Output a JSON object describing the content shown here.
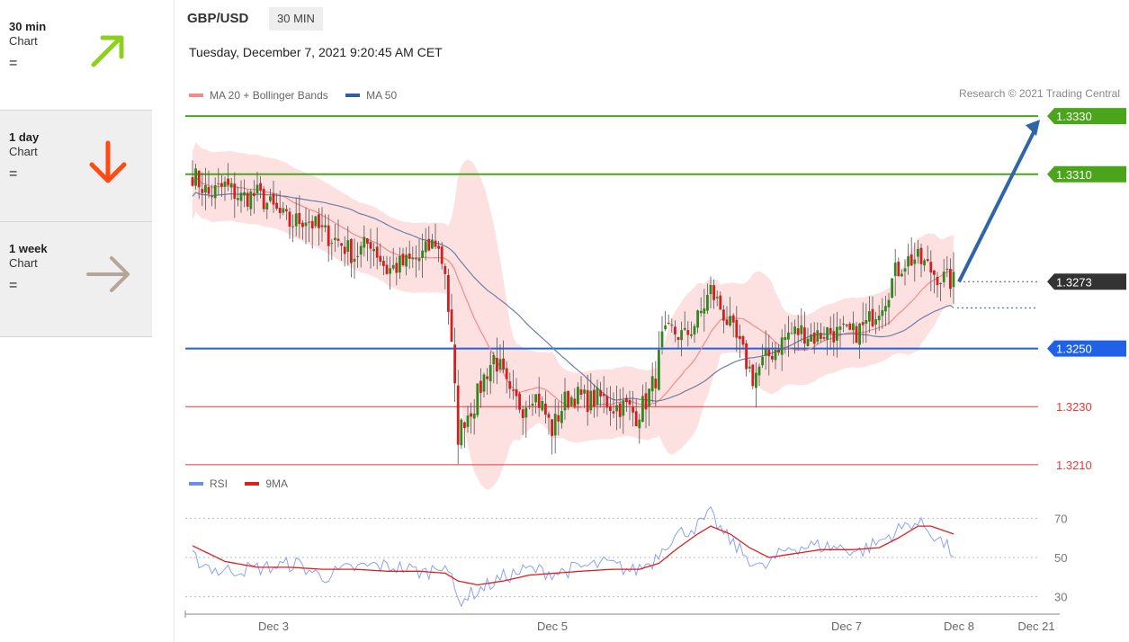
{
  "sidebar": {
    "timeframes": [
      {
        "name": "30 min",
        "sub": "Chart",
        "signal": "=",
        "icon": "arrow-up-right-icon",
        "color": "#8ed11c"
      },
      {
        "name": "1 day",
        "sub": "Chart",
        "signal": "=",
        "icon": "arrow-down-icon",
        "color": "#ff4a14"
      },
      {
        "name": "1 week",
        "sub": "Chart",
        "signal": "=",
        "icon": "arrow-right-icon",
        "color": "#b4a698"
      }
    ]
  },
  "header": {
    "pair": "GBP/USD",
    "timeframe_badge": "30 MIN",
    "datetime": "Tuesday, December 7, 2021 9:20:45 AM CET",
    "legend": [
      {
        "label": "MA 20 + Bollinger Bands",
        "color": "#f28c8c"
      },
      {
        "label": "MA 50",
        "color": "#2e5ea8"
      }
    ],
    "copyright": "Research © 2021 Trading Central"
  },
  "rsi_legend": [
    {
      "label": "RSI",
      "color": "#6b8ee8"
    },
    {
      "label": "9MA",
      "color": "#e01e1e"
    }
  ],
  "chart_data": [
    {
      "type": "candlestick",
      "x_ticks": [
        "Dec 3",
        "Dec 5",
        "Dec 7",
        "Dec 8",
        "Dec 21"
      ],
      "y_ticks": [
        "1.3210",
        "1.3230",
        "1.3250",
        "1.3273",
        "1.3310",
        "1.3330"
      ],
      "ylim": [
        1.3205,
        1.3335
      ],
      "current_price": 1.3273,
      "levels": [
        {
          "label": "1.3330",
          "value": 1.333,
          "kind": "resistance",
          "color": "#4aa51a"
        },
        {
          "label": "1.3310",
          "value": 1.331,
          "kind": "resistance",
          "color": "#4aa51a"
        },
        {
          "label": "1.3273",
          "value": 1.3273,
          "kind": "current",
          "color": "#333333"
        },
        {
          "label": "1.3250",
          "value": 1.325,
          "kind": "pivot",
          "color": "#1f62e8"
        },
        {
          "label": "1.3230",
          "value": 1.323,
          "kind": "support",
          "color": "#e83a3a"
        },
        {
          "label": "1.3210",
          "value": 1.321,
          "kind": "support",
          "color": "#e83a3a"
        }
      ],
      "target_arrow": {
        "from": 1.3273,
        "to": 1.333,
        "color": "#2f64a8"
      },
      "ma50_end": 1.3264,
      "close_anchors": [
        [
          0,
          1.331
        ],
        [
          5,
          1.3303
        ],
        [
          10,
          1.3306
        ],
        [
          15,
          1.3302
        ],
        [
          20,
          1.3303
        ],
        [
          25,
          1.3298
        ],
        [
          30,
          1.3293
        ],
        [
          35,
          1.3295
        ],
        [
          40,
          1.329
        ],
        [
          45,
          1.3287
        ],
        [
          50,
          1.3282
        ],
        [
          55,
          1.3287
        ],
        [
          60,
          1.3277
        ],
        [
          65,
          1.3279
        ],
        [
          70,
          1.3281
        ],
        [
          75,
          1.3287
        ],
        [
          78,
          1.3277
        ],
        [
          80,
          1.325
        ],
        [
          82,
          1.322
        ],
        [
          84,
          1.3226
        ],
        [
          87,
          1.3231
        ],
        [
          90,
          1.324
        ],
        [
          93,
          1.3247
        ],
        [
          95,
          1.3243
        ],
        [
          98,
          1.3233
        ],
        [
          102,
          1.323
        ],
        [
          105,
          1.3235
        ],
        [
          108,
          1.323
        ],
        [
          111,
          1.3222
        ],
        [
          115,
          1.3232
        ],
        [
          118,
          1.3234
        ],
        [
          122,
          1.3232
        ],
        [
          126,
          1.3233
        ],
        [
          130,
          1.323
        ],
        [
          134,
          1.323
        ],
        [
          137,
          1.3227
        ],
        [
          140,
          1.3232
        ],
        [
          143,
          1.324
        ],
        [
          145,
          1.3253
        ],
        [
          148,
          1.3256
        ],
        [
          152,
          1.3254
        ],
        [
          156,
          1.326
        ],
        [
          160,
          1.327
        ],
        [
          164,
          1.3262
        ],
        [
          167,
          1.3255
        ],
        [
          170,
          1.3248
        ],
        [
          173,
          1.324
        ],
        [
          176,
          1.3245
        ],
        [
          180,
          1.325
        ],
        [
          184,
          1.3255
        ],
        [
          188,
          1.3256
        ],
        [
          192,
          1.3254
        ],
        [
          196,
          1.3256
        ],
        [
          200,
          1.3255
        ],
        [
          204,
          1.3255
        ],
        [
          208,
          1.3258
        ],
        [
          211,
          1.3263
        ],
        [
          214,
          1.3268
        ],
        [
          217,
          1.3276
        ],
        [
          220,
          1.328
        ],
        [
          223,
          1.3281
        ],
        [
          226,
          1.3279
        ],
        [
          229,
          1.3276
        ],
        [
          232,
          1.3274
        ],
        [
          235,
          1.3273
        ]
      ],
      "rsi": {
        "y_ticks": [
          "30",
          "50",
          "70"
        ],
        "ylim": [
          22,
          78
        ],
        "anchors": [
          [
            0,
            50
          ],
          [
            8,
            43
          ],
          [
            16,
            44
          ],
          [
            24,
            45
          ],
          [
            32,
            47
          ],
          [
            40,
            40
          ],
          [
            48,
            44
          ],
          [
            56,
            46
          ],
          [
            64,
            45
          ],
          [
            72,
            42
          ],
          [
            78,
            48
          ],
          [
            82,
            28
          ],
          [
            88,
            33
          ],
          [
            96,
            40
          ],
          [
            104,
            44
          ],
          [
            112,
            42
          ],
          [
            120,
            45
          ],
          [
            128,
            47
          ],
          [
            136,
            43
          ],
          [
            142,
            48
          ],
          [
            146,
            57
          ],
          [
            150,
            62
          ],
          [
            156,
            66
          ],
          [
            160,
            72
          ],
          [
            164,
            62
          ],
          [
            170,
            52
          ],
          [
            176,
            44
          ],
          [
            184,
            55
          ],
          [
            192,
            56
          ],
          [
            200,
            55
          ],
          [
            206,
            53
          ],
          [
            212,
            58
          ],
          [
            218,
            64
          ],
          [
            222,
            68
          ],
          [
            226,
            66
          ],
          [
            230,
            60
          ],
          [
            235,
            52
          ]
        ],
        "ma_anchors": [
          [
            0,
            56
          ],
          [
            10,
            48
          ],
          [
            20,
            45
          ],
          [
            30,
            45
          ],
          [
            40,
            44
          ],
          [
            50,
            44
          ],
          [
            60,
            43
          ],
          [
            70,
            43
          ],
          [
            78,
            42
          ],
          [
            82,
            38
          ],
          [
            88,
            36
          ],
          [
            96,
            38
          ],
          [
            104,
            41
          ],
          [
            112,
            42
          ],
          [
            120,
            43
          ],
          [
            130,
            44
          ],
          [
            138,
            44
          ],
          [
            144,
            47
          ],
          [
            150,
            55
          ],
          [
            156,
            62
          ],
          [
            160,
            66
          ],
          [
            166,
            62
          ],
          [
            172,
            55
          ],
          [
            178,
            50
          ],
          [
            186,
            52
          ],
          [
            194,
            54
          ],
          [
            204,
            54
          ],
          [
            212,
            55
          ],
          [
            218,
            60
          ],
          [
            224,
            66
          ],
          [
            228,
            66
          ],
          [
            235,
            62
          ]
        ]
      }
    }
  ]
}
